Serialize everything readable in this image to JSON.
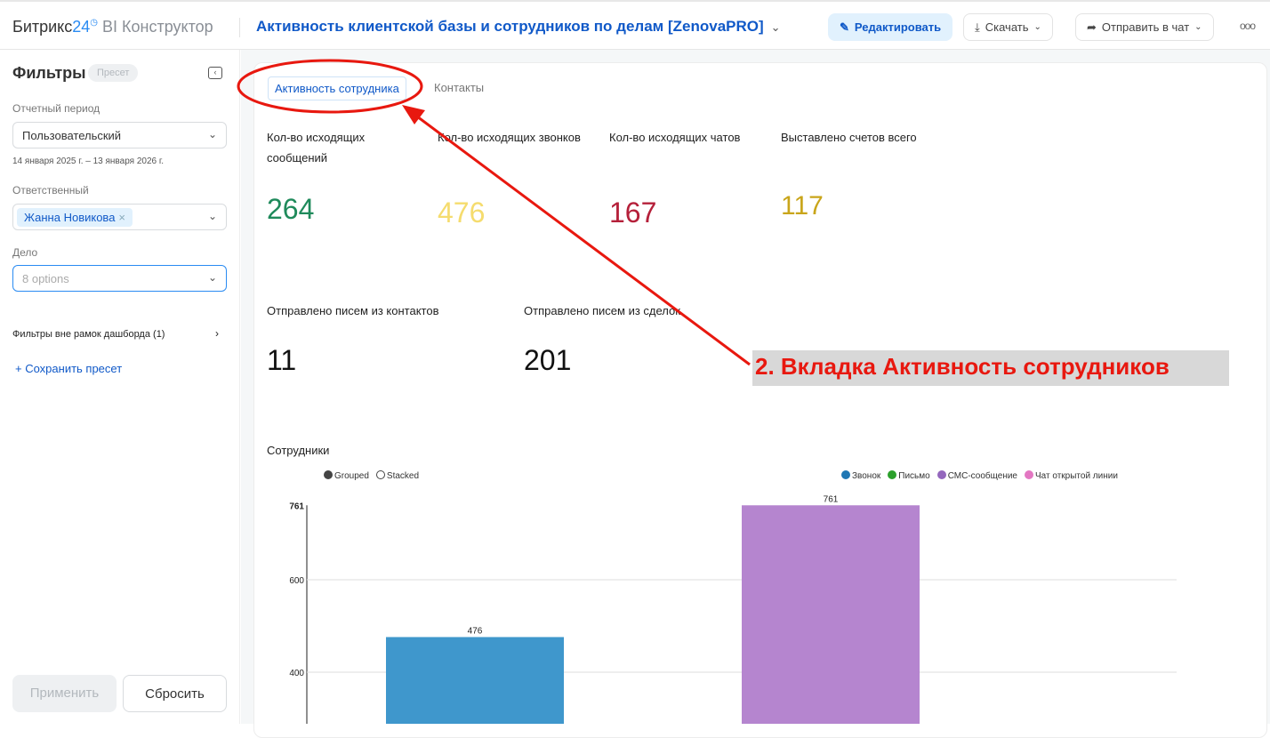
{
  "header": {
    "logo_main": "Битрикс",
    "logo_num": "24",
    "logo_clock": "◷",
    "logo_sub": "BI Конструктор",
    "title": "Активность клиентской базы и сотрудников по делам [ZenovaPRO]",
    "edit": "Редактировать",
    "download": "Скачать",
    "send": "Отправить в чат",
    "more": "ooo"
  },
  "sidebar": {
    "title": "Фильтры",
    "preset_badge": "Пресет",
    "period_label": "Отчетный период",
    "period_value": "Пользовательский",
    "period_dates": "14 января 2025 г. – 13 января 2026 г.",
    "resp_label": "Ответственный",
    "resp_value": "Жанна Новикова",
    "deal_label": "Дело",
    "deal_placeholder": "8 options",
    "outer_filters": "Фильтры вне рамок дашборда (1)",
    "save_preset": "+ Сохранить пресет",
    "apply": "Применить",
    "reset": "Сбросить"
  },
  "tabs": [
    {
      "label": "Активность сотрудника",
      "active": true
    },
    {
      "label": "Контакты",
      "active": false
    }
  ],
  "kpis": [
    {
      "label": "Кол-во исходящих сообщений",
      "value": "264",
      "color": "#1f8a5b"
    },
    {
      "label": "Кол-во исходящих звонков",
      "value": "476",
      "color": "#f5dc6e"
    },
    {
      "label": "Кол-во исходящих чатов",
      "value": "167",
      "color": "#b5203a"
    },
    {
      "label": "Выставлено счетов всего",
      "value": "117",
      "color": "#c9a51a"
    },
    {
      "label": "Отправлено писем из контактов",
      "value": "11",
      "color": "#111111"
    },
    {
      "label": "Отправлено писем из сделок",
      "value": "201",
      "color": "#111111"
    }
  ],
  "chart_data": {
    "type": "bar",
    "title": "Сотрудники",
    "modes": [
      "Grouped",
      "Stacked"
    ],
    "selected_mode": "Grouped",
    "legend": [
      {
        "name": "Звонок",
        "color": "#1f77b4"
      },
      {
        "name": "Письмо",
        "color": "#2ca02c"
      },
      {
        "name": "СМС-сообщение",
        "color": "#9467bd"
      },
      {
        "name": "Чат открытой линии",
        "color": "#e377c2"
      }
    ],
    "bars": [
      {
        "series": "Звонок",
        "value": 476,
        "color": "#3f97cc"
      },
      {
        "series": "СМС-сообщение",
        "value": 761,
        "color": "#b585cf"
      }
    ],
    "yticks": [
      400,
      600,
      761
    ],
    "ymax": 761,
    "grid": true
  },
  "annotation": {
    "text": "2. Вкладка Активность сотрудников",
    "color": "#e8180f"
  }
}
